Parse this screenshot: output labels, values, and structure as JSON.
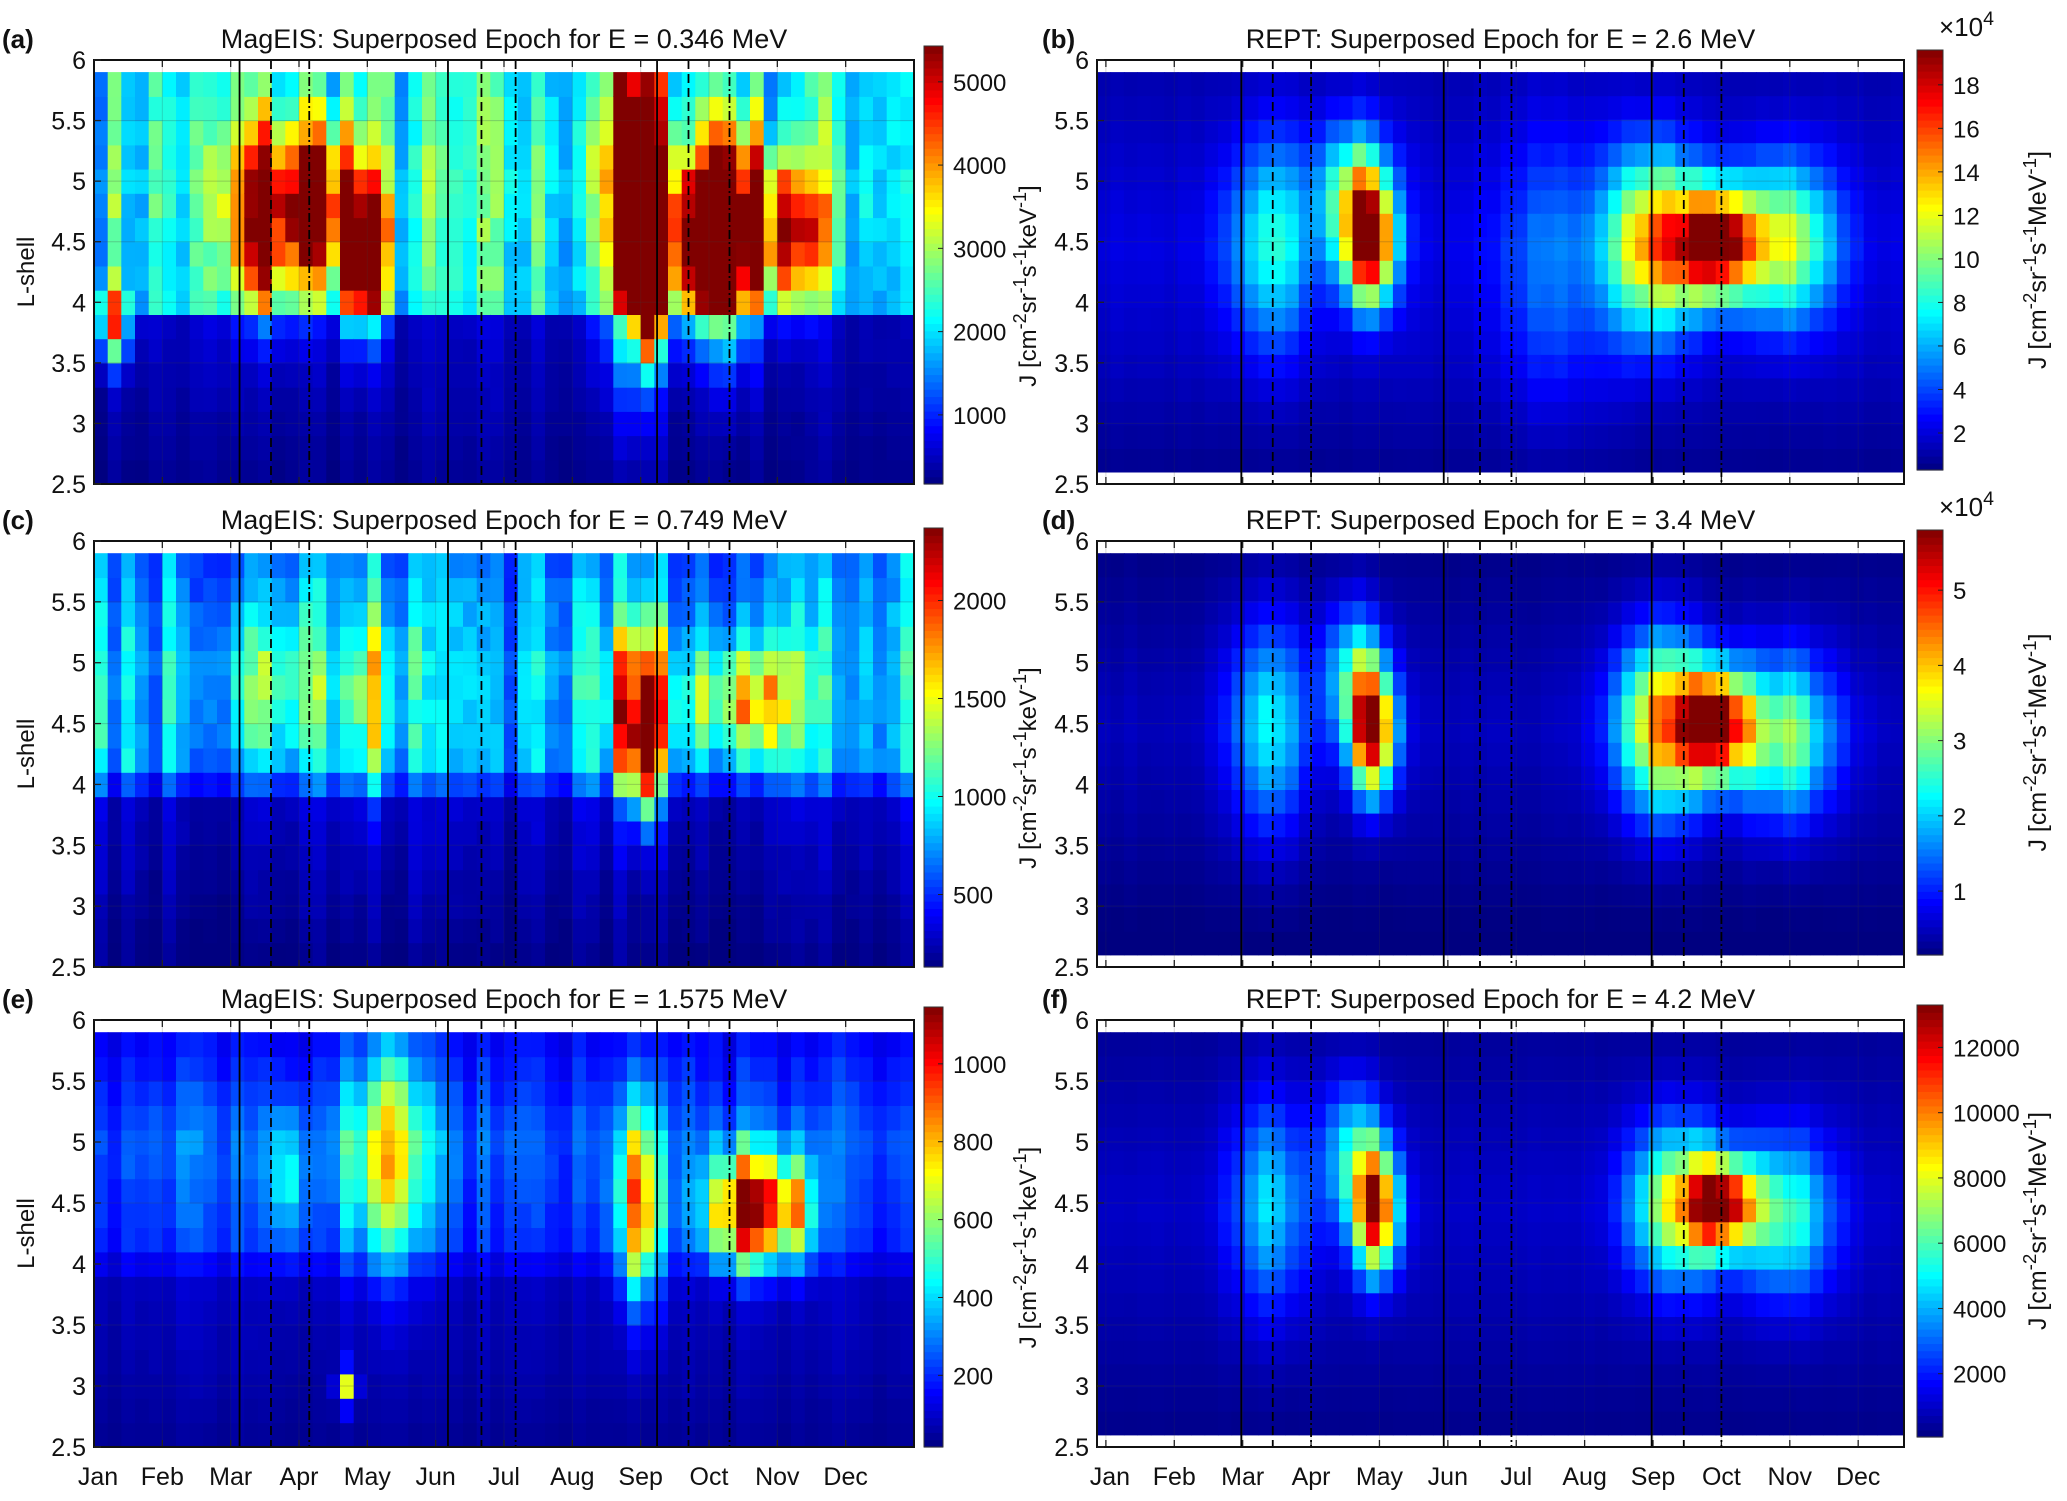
{
  "chart_data": [
    {
      "id": "a",
      "letter": "(a)",
      "type": "heatmap",
      "title": "MagEIS: Superposed Epoch for E = 0.346 MeV",
      "ylabel": "L-shell",
      "xlabel": "",
      "x_domain_months": [
        0,
        12
      ],
      "ylim": [
        2.5,
        6
      ],
      "data_L_range": [
        2.5,
        5.9
      ],
      "yticks": [
        "2.5",
        "3",
        "3.5",
        "4",
        "4.5",
        "5",
        "5.5",
        "6"
      ],
      "xticks": [],
      "colorbar": {
        "range": [
          170,
          5430
        ],
        "ticks": [
          "1000",
          "2000",
          "3000",
          "4000",
          "5000"
        ],
        "tick_values": [
          1000,
          2000,
          3000,
          4000,
          5000
        ],
        "multiplier": "",
        "label": ""
      },
      "background": [
        [
          2.5,
          250
        ],
        [
          3.9,
          500
        ],
        [
          4.0,
          2000
        ],
        [
          5.0,
          2300
        ],
        [
          5.9,
          2100
        ]
      ],
      "hotspots": [
        [
          2.6,
          4.7,
          3600,
          0.4,
          0.5
        ],
        [
          3.9,
          4.4,
          4500,
          0.25,
          0.4
        ],
        [
          3.4,
          4.9,
          3200,
          0.3,
          0.4
        ],
        [
          7.9,
          5.0,
          4200,
          0.35,
          0.9
        ],
        [
          8.1,
          4.0,
          4800,
          0.12,
          0.3
        ],
        [
          8.75,
          4.5,
          4900,
          0.35,
          0.45
        ],
        [
          9.3,
          4.6,
          4700,
          0.25,
          0.6
        ],
        [
          10.1,
          4.6,
          4100,
          0.35,
          0.4
        ],
        [
          0.25,
          3.8,
          3000,
          0.2,
          0.2
        ]
      ],
      "vlines": [
        [
          2.13,
          "solid"
        ],
        [
          2.59,
          "dashed"
        ],
        [
          3.15,
          "dashdot"
        ],
        [
          5.18,
          "solid"
        ],
        [
          5.67,
          "dashed"
        ],
        [
          6.17,
          "dashdot"
        ],
        [
          8.24,
          "solid"
        ],
        [
          8.7,
          "dashed"
        ],
        [
          9.3,
          "dashdot"
        ]
      ],
      "noise": 0.35
    },
    {
      "id": "b",
      "letter": "(b)",
      "type": "heatmap",
      "title": "REPT: Superposed Epoch for E = 2.6 MeV",
      "ylabel": "J [cm^-2sr^-1s^-1keV^-1]",
      "xlabel": "",
      "x_domain_months": [
        -0.13,
        11.67
      ],
      "ylim": [
        2.5,
        6
      ],
      "data_L_range": [
        2.6,
        5.9
      ],
      "yticks": [
        "2.5",
        "3",
        "3.5",
        "4",
        "4.5",
        "5",
        "5.5",
        "6"
      ],
      "xticks": [],
      "colorbar": {
        "range": [
          0.3,
          19.6
        ],
        "ticks": [
          "2",
          "4",
          "6",
          "8",
          "10",
          "12",
          "14",
          "16",
          "18"
        ],
        "tick_values": [
          2,
          4,
          6,
          8,
          10,
          12,
          14,
          16,
          18
        ],
        "multiplier": "×10^4",
        "label": "J [cm^-2sr^-1s^-1MeV^-1]"
      },
      "background": [
        [
          2.6,
          0.6
        ],
        [
          3.5,
          1.5
        ],
        [
          4.5,
          2.2
        ],
        [
          5.9,
          1.2
        ]
      ],
      "hotspots": [
        [
          3.85,
          4.5,
          17,
          0.25,
          0.35
        ],
        [
          3.6,
          4.9,
          8,
          0.35,
          0.4
        ],
        [
          2.4,
          4.5,
          6,
          0.45,
          0.6
        ],
        [
          8.9,
          4.5,
          18,
          0.4,
          0.3
        ],
        [
          8.0,
          4.5,
          12,
          0.45,
          0.5
        ],
        [
          9.9,
          4.5,
          10,
          0.5,
          0.45
        ],
        [
          6.6,
          4.3,
          3,
          0.6,
          0.8
        ]
      ],
      "vlines": [
        [
          1.98,
          "solid"
        ],
        [
          2.44,
          "dashed"
        ],
        [
          3.0,
          "dashdot"
        ],
        [
          4.94,
          "solid"
        ],
        [
          5.47,
          "dashed"
        ],
        [
          5.93,
          "dashdot"
        ],
        [
          7.98,
          "solid"
        ],
        [
          8.45,
          "dashed"
        ],
        [
          9.0,
          "dashdot"
        ]
      ],
      "noise": 0.08
    },
    {
      "id": "c",
      "letter": "(c)",
      "type": "heatmap",
      "title": "MagEIS: Superposed Epoch for E = 0.749 MeV",
      "ylabel": "L-shell",
      "xlabel": "",
      "x_domain_months": [
        0,
        12
      ],
      "ylim": [
        2.5,
        6
      ],
      "data_L_range": [
        2.5,
        5.9
      ],
      "yticks": [
        "2.5",
        "3",
        "3.5",
        "4",
        "4.5",
        "5",
        "5.5",
        "6"
      ],
      "xticks": [],
      "colorbar": {
        "range": [
          130,
          2370
        ],
        "ticks": [
          "500",
          "1000",
          "1500",
          "2000"
        ],
        "tick_values": [
          500,
          1000,
          1500,
          2000
        ],
        "multiplier": "",
        "label": ""
      },
      "background": [
        [
          2.5,
          150
        ],
        [
          3.9,
          300
        ],
        [
          4.1,
          800
        ],
        [
          5.0,
          900
        ],
        [
          5.9,
          700
        ]
      ],
      "hotspots": [
        [
          8.0,
          4.6,
          1500,
          0.3,
          0.45
        ],
        [
          8.05,
          4.1,
          900,
          0.12,
          0.3
        ],
        [
          9.5,
          4.7,
          1200,
          0.5,
          0.3
        ],
        [
          4.1,
          4.7,
          500,
          0.25,
          0.5
        ],
        [
          2.6,
          4.8,
          450,
          0.6,
          0.4
        ]
      ],
      "vlines": [
        [
          2.13,
          "solid"
        ],
        [
          2.59,
          "dashed"
        ],
        [
          3.15,
          "dashdot"
        ],
        [
          5.18,
          "solid"
        ],
        [
          5.67,
          "dashed"
        ],
        [
          6.17,
          "dashdot"
        ],
        [
          8.24,
          "solid"
        ],
        [
          8.7,
          "dashed"
        ],
        [
          9.3,
          "dashdot"
        ]
      ],
      "noise": 0.35
    },
    {
      "id": "d",
      "letter": "(d)",
      "type": "heatmap",
      "title": "REPT: Superposed Epoch for E = 3.4 MeV",
      "ylabel": "J [cm^-2sr^-1s^-1keV^-1]",
      "xlabel": "",
      "x_domain_months": [
        -0.13,
        11.67
      ],
      "ylim": [
        2.5,
        6
      ],
      "data_L_range": [
        2.6,
        5.9
      ],
      "yticks": [
        "2.5",
        "3",
        "3.5",
        "4",
        "4.5",
        "5",
        "5.5",
        "6"
      ],
      "xticks": [],
      "colorbar": {
        "range": [
          0.15,
          5.8
        ],
        "ticks": [
          "1",
          "2",
          "3",
          "4",
          "5"
        ],
        "tick_values": [
          1,
          2,
          3,
          4,
          5
        ],
        "multiplier": "×10^4",
        "label": "J [cm^-2sr^-1s^-1MeV^-1]"
      },
      "background": [
        [
          2.6,
          0.1
        ],
        [
          3.5,
          0.3
        ],
        [
          4.5,
          0.5
        ],
        [
          5.9,
          0.2
        ]
      ],
      "hotspots": [
        [
          3.9,
          4.45,
          5.2,
          0.22,
          0.35
        ],
        [
          3.6,
          4.9,
          2,
          0.3,
          0.4
        ],
        [
          2.4,
          4.5,
          1.7,
          0.4,
          0.6
        ],
        [
          8.9,
          4.5,
          5.4,
          0.35,
          0.3
        ],
        [
          8.1,
          4.5,
          3.6,
          0.45,
          0.5
        ],
        [
          9.9,
          4.4,
          2.6,
          0.5,
          0.45
        ]
      ],
      "vlines": [
        [
          1.98,
          "solid"
        ],
        [
          2.44,
          "dashed"
        ],
        [
          3.0,
          "dashdot"
        ],
        [
          4.94,
          "solid"
        ],
        [
          5.47,
          "dashed"
        ],
        [
          5.93,
          "dashdot"
        ],
        [
          7.98,
          "solid"
        ],
        [
          8.45,
          "dashed"
        ],
        [
          9.0,
          "dashdot"
        ]
      ],
      "noise": 0.08
    },
    {
      "id": "e",
      "letter": "(e)",
      "type": "heatmap",
      "title": "MagEIS: Superposed Epoch for E = 1.575 MeV",
      "ylabel": "L-shell",
      "xlabel": "",
      "x_domain_months": [
        0,
        12
      ],
      "ylim": [
        2.5,
        6
      ],
      "data_L_range": [
        2.5,
        5.9
      ],
      "yticks": [
        "2.5",
        "3",
        "3.5",
        "4",
        "4.5",
        "5",
        "5.5",
        "6"
      ],
      "xticks": [
        "Jan",
        "Feb",
        "Mar",
        "Apr",
        "May",
        "Jun",
        "Jul",
        "Aug",
        "Sep",
        "Oct",
        "Nov",
        "Dec"
      ],
      "colorbar": {
        "range": [
          16,
          1146
        ],
        "ticks": [
          "200",
          "400",
          "600",
          "800",
          "1000"
        ],
        "tick_values": [
          200,
          400,
          600,
          800,
          1000
        ],
        "multiplier": "",
        "label": ""
      },
      "background": [
        [
          2.5,
          40
        ],
        [
          3.9,
          90
        ],
        [
          4.1,
          200
        ],
        [
          5.0,
          260
        ],
        [
          5.9,
          150
        ]
      ],
      "hotspots": [
        [
          9.5,
          4.45,
          950,
          0.35,
          0.3
        ],
        [
          8.0,
          4.5,
          700,
          0.22,
          0.55
        ],
        [
          10.2,
          4.45,
          600,
          0.25,
          0.3
        ],
        [
          4.3,
          4.9,
          450,
          0.45,
          0.6
        ],
        [
          2.85,
          4.7,
          300,
          0.2,
          0.4
        ],
        [
          3.7,
          3.0,
          500,
          0.1,
          0.1
        ]
      ],
      "vlines": [
        [
          2.13,
          "solid"
        ],
        [
          2.59,
          "dashed"
        ],
        [
          3.15,
          "dashdot"
        ],
        [
          5.18,
          "solid"
        ],
        [
          5.67,
          "dashed"
        ],
        [
          6.17,
          "dashdot"
        ],
        [
          8.24,
          "solid"
        ],
        [
          8.7,
          "dashed"
        ],
        [
          9.3,
          "dashdot"
        ]
      ],
      "noise": 0.25
    },
    {
      "id": "f",
      "letter": "(f)",
      "type": "heatmap",
      "title": "REPT: Superposed Epoch for E = 4.2 MeV",
      "ylabel": "J [cm^-2sr^-1s^-1keV^-1]",
      "xlabel": "",
      "x_domain_months": [
        -0.13,
        11.67
      ],
      "ylim": [
        2.5,
        6
      ],
      "data_L_range": [
        2.6,
        5.9
      ],
      "yticks": [
        "2.5",
        "3",
        "3.5",
        "4",
        "4.5",
        "5",
        "5.5",
        "6"
      ],
      "xticks": [
        "Jan",
        "Feb",
        "Mar",
        "Apr",
        "May",
        "Jun",
        "Jul",
        "Aug",
        "Sep",
        "Oct",
        "Nov",
        "Dec"
      ],
      "colorbar": {
        "range": [
          60,
          13300
        ],
        "ticks": [
          "2000",
          "4000",
          "6000",
          "8000",
          "10000",
          "12000"
        ],
        "tick_values": [
          2000,
          4000,
          6000,
          8000,
          10000,
          12000
        ],
        "multiplier": "",
        "label": "J [cm^-2sr^-1s^-1MeV^-1]"
      },
      "background": [
        [
          2.6,
          200
        ],
        [
          3.5,
          600
        ],
        [
          4.5,
          1000
        ],
        [
          5.9,
          400
        ]
      ],
      "hotspots": [
        [
          3.95,
          4.45,
          11500,
          0.22,
          0.35
        ],
        [
          3.6,
          4.9,
          4000,
          0.3,
          0.4
        ],
        [
          2.4,
          4.5,
          3500,
          0.4,
          0.6
        ],
        [
          9.0,
          4.5,
          11500,
          0.35,
          0.25
        ],
        [
          8.3,
          4.5,
          7000,
          0.45,
          0.45
        ],
        [
          9.9,
          4.4,
          5000,
          0.5,
          0.45
        ]
      ],
      "vlines": [
        [
          1.98,
          "solid"
        ],
        [
          2.44,
          "dashed"
        ],
        [
          3.0,
          "dashdot"
        ],
        [
          4.94,
          "solid"
        ],
        [
          5.47,
          "dashed"
        ],
        [
          5.93,
          "dashdot"
        ],
        [
          7.98,
          "solid"
        ],
        [
          8.45,
          "dashed"
        ],
        [
          9.0,
          "dashdot"
        ]
      ],
      "noise": 0.08
    }
  ]
}
